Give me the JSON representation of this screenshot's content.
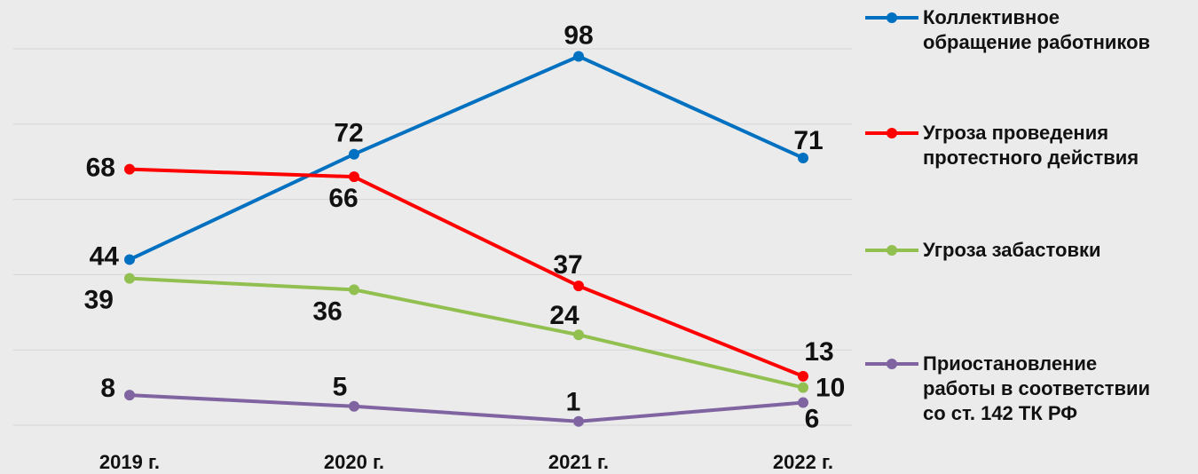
{
  "chart_data": {
    "type": "line",
    "categories": [
      "2019 г.",
      "2020 г.",
      "2021 г.",
      "2022 г."
    ],
    "series": [
      {
        "name": "Коллективное\nобращение работников",
        "color": "#0070c0",
        "values": [
          44,
          72,
          98,
          71
        ]
      },
      {
        "name": "Угроза проведения\nпротестного действия",
        "color": "#ff0000",
        "values": [
          68,
          66,
          37,
          13
        ]
      },
      {
        "name": "Угроза забастовки",
        "color": "#92c050",
        "values": [
          39,
          36,
          24,
          10
        ]
      },
      {
        "name": "Приостановление\nработы в соответствии\nсо ст. 142 ТК РФ",
        "color": "#8064a2",
        "values": [
          8,
          5,
          1,
          6
        ]
      }
    ],
    "ylim": [
      0,
      100
    ],
    "yticks": [
      0,
      20,
      40,
      60,
      80,
      100
    ],
    "grid": true,
    "legend": "right"
  }
}
